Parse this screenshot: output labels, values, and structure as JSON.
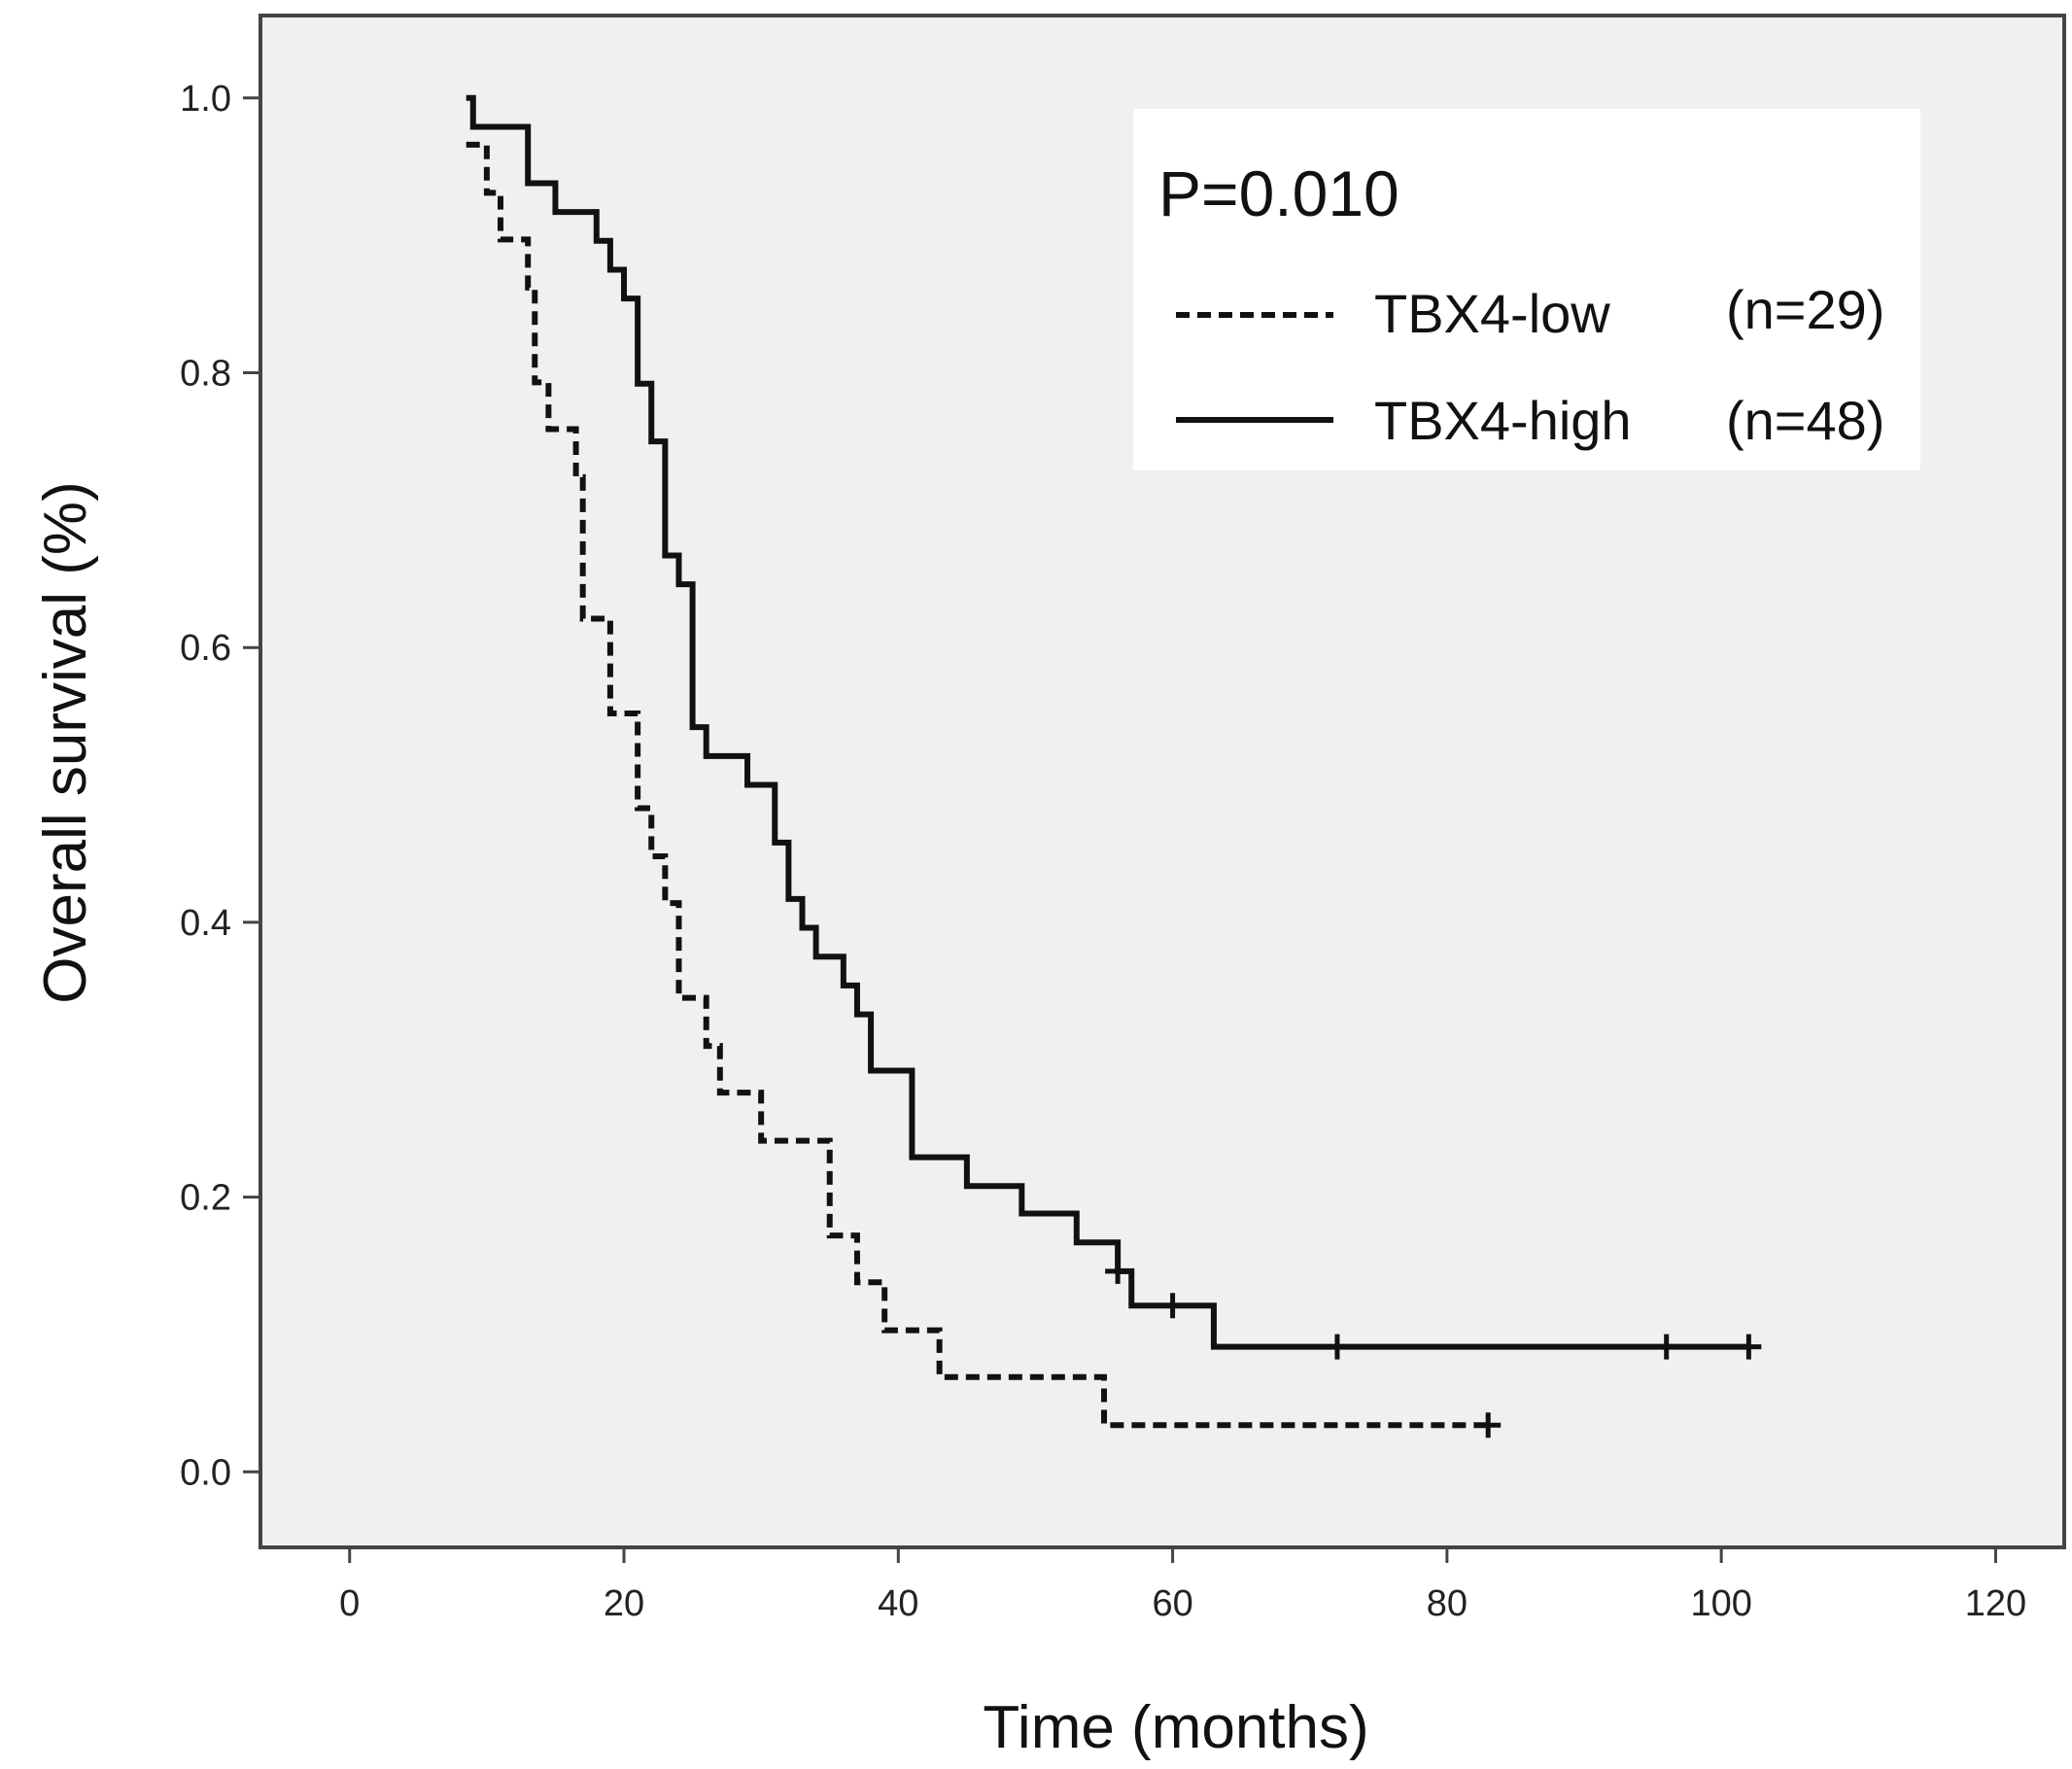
{
  "chart_data": {
    "type": "line",
    "subtype": "kaplan-meier step",
    "xlabel": "Time  (months)",
    "ylabel": "Overall survival (%)",
    "xlim": [
      -6.5,
      125
    ],
    "ylim": [
      -0.055,
      1.06
    ],
    "x_ticks": [
      0,
      20,
      40,
      60,
      80,
      100,
      120
    ],
    "y_ticks": [
      0.0,
      0.2,
      0.4,
      0.6,
      0.8,
      1.0
    ],
    "x_tick_labels": [
      "0",
      "20",
      "40",
      "60",
      "80",
      "100",
      "120"
    ],
    "y_tick_labels": [
      "0.0",
      "0.2",
      "0.4",
      "0.6",
      "0.8",
      "1.0"
    ],
    "grid": false,
    "plot_background": "#f0f0f0",
    "annotation": "P=0.010",
    "legend_position": "top-right",
    "series": [
      {
        "name": "TBX4-low",
        "n_label": "(n=29)",
        "line_style": "dashed",
        "color": "#111111",
        "steps": [
          [
            8.5,
            0.966
          ],
          [
            10,
            0.931
          ],
          [
            11,
            0.897
          ],
          [
            13,
            0.862
          ],
          [
            13.5,
            0.793
          ],
          [
            14.5,
            0.759
          ],
          [
            16.5,
            0.724
          ],
          [
            17,
            0.621
          ],
          [
            19,
            0.552
          ],
          [
            21,
            0.483
          ],
          [
            22,
            0.448
          ],
          [
            23,
            0.414
          ],
          [
            24,
            0.345
          ],
          [
            26,
            0.31
          ],
          [
            27,
            0.276
          ],
          [
            30,
            0.241
          ],
          [
            35,
            0.172
          ],
          [
            37,
            0.138
          ],
          [
            39,
            0.103
          ],
          [
            43,
            0.069
          ],
          [
            55,
            0.034
          ]
        ],
        "end_x": 83,
        "censored": [
          [
            83,
            0.034
          ]
        ]
      },
      {
        "name": "TBX4-high",
        "n_label": "(n=48)",
        "line_style": "solid",
        "color": "#111111",
        "steps": [
          [
            8.5,
            1.0
          ],
          [
            9,
            0.979
          ],
          [
            13,
            0.938
          ],
          [
            15,
            0.917
          ],
          [
            18,
            0.896
          ],
          [
            19,
            0.875
          ],
          [
            20,
            0.854
          ],
          [
            21,
            0.792
          ],
          [
            22,
            0.75
          ],
          [
            23,
            0.667
          ],
          [
            24,
            0.646
          ],
          [
            25,
            0.542
          ],
          [
            26,
            0.521
          ],
          [
            29,
            0.5
          ],
          [
            31,
            0.458
          ],
          [
            32,
            0.417
          ],
          [
            33,
            0.396
          ],
          [
            34,
            0.375
          ],
          [
            36,
            0.354
          ],
          [
            37,
            0.333
          ],
          [
            38,
            0.292
          ],
          [
            41,
            0.229
          ],
          [
            45,
            0.208
          ],
          [
            49,
            0.188
          ],
          [
            53,
            0.167
          ],
          [
            56,
            0.146
          ],
          [
            57,
            0.121
          ],
          [
            63,
            0.091
          ]
        ],
        "end_x": 102,
        "censored": [
          [
            56,
            0.146
          ],
          [
            60,
            0.121
          ],
          [
            72,
            0.091
          ],
          [
            96,
            0.091
          ],
          [
            102,
            0.091
          ]
        ]
      }
    ]
  }
}
